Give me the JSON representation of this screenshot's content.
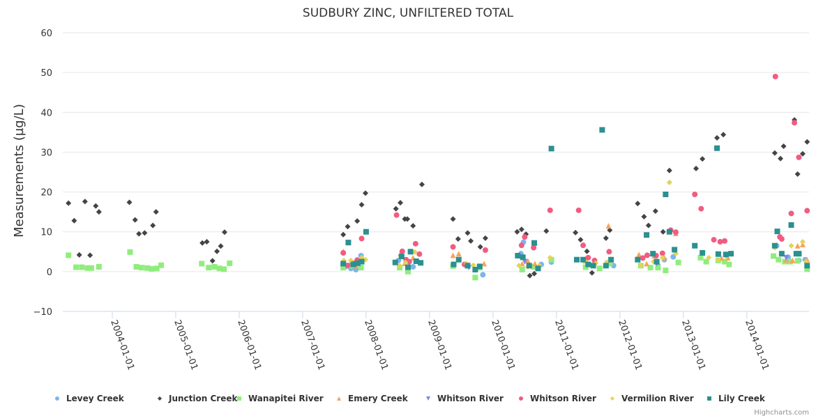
{
  "chart_data": {
    "type": "scatter",
    "title": "SUDBURY ZINC, UNFILTERED TOTAL",
    "xlabel": "",
    "ylabel": "Measurements (µg/L)",
    "ylim": [
      -10,
      60
    ],
    "xlim": [
      2003.22,
      2014.98
    ],
    "yticks": [
      "−10",
      "0",
      "10",
      "20",
      "30",
      "40",
      "50",
      "60"
    ],
    "ytick_values": [
      -10,
      0,
      10,
      20,
      30,
      40,
      50,
      60
    ],
    "xticks": [
      "2004-01-01",
      "2005-01-01",
      "2006-01-01",
      "2007-01-01",
      "2008-01-01",
      "2009-01-01",
      "2010-01-01",
      "2011-01-01",
      "2012-01-01",
      "2013-01-01",
      "2014-01-01"
    ],
    "xtick_values": [
      2004,
      2005,
      2006,
      2007,
      2008,
      2009,
      2010,
      2011,
      2012,
      2013,
      2014
    ],
    "grid": true,
    "legend": "bottom-center",
    "credits": "Highcharts.com",
    "series": [
      {
        "name": "Levey Creek",
        "marker": "circle",
        "color": "#7cb5ec",
        "points": [
          [
            2007.67,
            1.2
          ],
          [
            2007.76,
            0.8
          ],
          [
            2007.84,
            0.5
          ],
          [
            2007.92,
            4.0
          ],
          [
            2008.51,
            2.8
          ],
          [
            2008.74,
            1.2
          ],
          [
            2009.84,
            -0.8
          ],
          [
            2010.44,
            4.5
          ],
          [
            2010.48,
            7.4
          ],
          [
            2010.76,
            1.8
          ],
          [
            2010.92,
            2.4
          ],
          [
            2011.45,
            3.0
          ],
          [
            2011.9,
            1.5
          ],
          [
            2012.6,
            1.5
          ],
          [
            2012.7,
            3.0
          ],
          [
            2012.84,
            3.7
          ],
          [
            2014.47,
            6.5
          ],
          [
            2014.65,
            3.6
          ],
          [
            2014.82,
            2.8
          ],
          [
            2014.92,
            3.0
          ]
        ]
      },
      {
        "name": "Junction Creek",
        "marker": "diamond",
        "color": "#434348",
        "points": [
          [
            2003.31,
            17.2
          ],
          [
            2003.4,
            12.8
          ],
          [
            2003.48,
            4.2
          ],
          [
            2003.57,
            17.6
          ],
          [
            2003.65,
            4.1
          ],
          [
            2003.74,
            16.5
          ],
          [
            2003.79,
            15.0
          ],
          [
            2004.27,
            17.4
          ],
          [
            2004.36,
            13.0
          ],
          [
            2004.42,
            9.5
          ],
          [
            2004.51,
            9.7
          ],
          [
            2004.64,
            11.6
          ],
          [
            2004.69,
            15.0
          ],
          [
            2005.42,
            7.2
          ],
          [
            2005.49,
            7.5
          ],
          [
            2005.58,
            2.7
          ],
          [
            2005.65,
            5.1
          ],
          [
            2005.71,
            6.4
          ],
          [
            2005.77,
            9.9
          ],
          [
            2007.64,
            9.3
          ],
          [
            2007.71,
            11.3
          ],
          [
            2007.86,
            12.7
          ],
          [
            2007.93,
            16.8
          ],
          [
            2007.99,
            19.7
          ],
          [
            2008.47,
            15.8
          ],
          [
            2008.54,
            17.3
          ],
          [
            2008.61,
            13.2
          ],
          [
            2008.65,
            13.2
          ],
          [
            2008.74,
            11.5
          ],
          [
            2008.88,
            21.9
          ],
          [
            2009.37,
            13.2
          ],
          [
            2009.45,
            8.2
          ],
          [
            2009.6,
            9.7
          ],
          [
            2009.65,
            7.7
          ],
          [
            2009.8,
            6.2
          ],
          [
            2009.88,
            8.4
          ],
          [
            2010.38,
            10.0
          ],
          [
            2010.45,
            10.6
          ],
          [
            2010.52,
            9.4
          ],
          [
            2010.58,
            -1.0
          ],
          [
            2010.65,
            -0.5
          ],
          [
            2010.84,
            10.2
          ],
          [
            2011.3,
            9.8
          ],
          [
            2011.38,
            8.0
          ],
          [
            2011.48,
            5.1
          ],
          [
            2011.56,
            -0.3
          ],
          [
            2011.78,
            8.4
          ],
          [
            2011.84,
            10.4
          ],
          [
            2012.28,
            17.1
          ],
          [
            2012.38,
            13.8
          ],
          [
            2012.45,
            11.6
          ],
          [
            2012.56,
            15.2
          ],
          [
            2012.68,
            10.0
          ],
          [
            2012.78,
            25.4
          ],
          [
            2013.2,
            25.9
          ],
          [
            2013.3,
            28.3
          ],
          [
            2013.53,
            33.6
          ],
          [
            2013.63,
            34.4
          ],
          [
            2014.44,
            29.8
          ],
          [
            2014.58,
            31.5
          ],
          [
            2014.53,
            28.4
          ],
          [
            2014.75,
            38.1
          ],
          [
            2014.8,
            24.5
          ],
          [
            2014.88,
            29.6
          ],
          [
            2014.95,
            32.6
          ]
        ]
      },
      {
        "name": "Wanapitei River",
        "marker": "square",
        "color": "#90ed7d",
        "points": [
          [
            2003.31,
            4.1
          ],
          [
            2003.43,
            1.1
          ],
          [
            2003.52,
            1.1
          ],
          [
            2003.61,
            0.9
          ],
          [
            2003.67,
            0.9
          ],
          [
            2003.79,
            1.2
          ],
          [
            2004.28,
            4.9
          ],
          [
            2004.38,
            1.2
          ],
          [
            2004.46,
            1.0
          ],
          [
            2004.55,
            0.9
          ],
          [
            2004.62,
            0.7
          ],
          [
            2004.7,
            0.8
          ],
          [
            2004.77,
            1.6
          ],
          [
            2005.41,
            2.0
          ],
          [
            2005.52,
            1.0
          ],
          [
            2005.61,
            1.2
          ],
          [
            2005.69,
            0.8
          ],
          [
            2005.76,
            0.6
          ],
          [
            2005.85,
            2.1
          ],
          [
            2007.64,
            1.0
          ],
          [
            2007.76,
            1.5
          ],
          [
            2007.92,
            1.0
          ],
          [
            2008.53,
            1.0
          ],
          [
            2008.66,
            0.0
          ],
          [
            2009.37,
            1.4
          ],
          [
            2009.6,
            1.5
          ],
          [
            2009.72,
            -1.5
          ],
          [
            2009.79,
            1.0
          ],
          [
            2010.46,
            0.5
          ],
          [
            2010.64,
            1.2
          ],
          [
            2010.92,
            3.0
          ],
          [
            2011.46,
            1.1
          ],
          [
            2011.68,
            0.8
          ],
          [
            2011.84,
            2.0
          ],
          [
            2012.33,
            1.5
          ],
          [
            2012.48,
            1.0
          ],
          [
            2012.6,
            1.0
          ],
          [
            2012.72,
            0.3
          ],
          [
            2012.92,
            2.3
          ],
          [
            2013.27,
            3.5
          ],
          [
            2013.36,
            2.5
          ],
          [
            2013.55,
            2.8
          ],
          [
            2013.65,
            2.5
          ],
          [
            2013.72,
            1.8
          ],
          [
            2014.42,
            3.9
          ],
          [
            2014.5,
            3.0
          ],
          [
            2014.6,
            2.5
          ],
          [
            2014.68,
            2.5
          ],
          [
            2014.8,
            2.7
          ],
          [
            2014.95,
            0.6
          ]
        ]
      },
      {
        "name": "Emery Creek",
        "marker": "triangle",
        "color": "#f7a35c",
        "points": [
          [
            2007.64,
            5.1
          ],
          [
            2007.84,
            1.5
          ],
          [
            2008.54,
            4.5
          ],
          [
            2008.61,
            2.1
          ],
          [
            2008.74,
            3.5
          ],
          [
            2009.37,
            4.1
          ],
          [
            2009.46,
            4.5
          ],
          [
            2009.86,
            2.0
          ],
          [
            2010.46,
            2.0
          ],
          [
            2010.55,
            2.7
          ],
          [
            2010.66,
            2.0
          ],
          [
            2011.46,
            2.7
          ],
          [
            2011.82,
            11.5
          ],
          [
            2012.3,
            4.3
          ],
          [
            2012.42,
            2.0
          ],
          [
            2012.54,
            4.0
          ],
          [
            2012.7,
            3.5
          ],
          [
            2012.88,
            9.6
          ],
          [
            2013.6,
            3.4
          ],
          [
            2013.7,
            3.5
          ],
          [
            2014.62,
            3.0
          ],
          [
            2014.72,
            2.8
          ],
          [
            2014.8,
            6.5
          ],
          [
            2014.88,
            6.8
          ],
          [
            2014.95,
            3.0
          ]
        ]
      },
      {
        "name": "Whitson River",
        "marker": "triangle-down",
        "color": "#8085e9",
        "points": [
          [
            2007.72,
            1.5
          ],
          [
            2009.62,
            1.0
          ],
          [
            2010.5,
            2.5
          ],
          [
            2011.8,
            2.0
          ],
          [
            2012.58,
            2.0
          ],
          [
            2014.62,
            3.5
          ]
        ]
      },
      {
        "name": "Whitson River",
        "marker": "circle",
        "color": "#f15c80",
        "points": [
          [
            2007.64,
            4.7
          ],
          [
            2007.71,
            1.5
          ],
          [
            2007.8,
            2.1
          ],
          [
            2007.86,
            2.9
          ],
          [
            2007.93,
            8.3
          ],
          [
            2008.48,
            14.2
          ],
          [
            2008.57,
            5.1
          ],
          [
            2008.63,
            3.0
          ],
          [
            2008.68,
            2.5
          ],
          [
            2008.78,
            7.0
          ],
          [
            2008.84,
            4.4
          ],
          [
            2009.37,
            6.2
          ],
          [
            2009.55,
            1.8
          ],
          [
            2009.88,
            5.4
          ],
          [
            2010.45,
            6.6
          ],
          [
            2010.5,
            8.7
          ],
          [
            2010.64,
            6.0
          ],
          [
            2010.9,
            15.4
          ],
          [
            2011.35,
            15.4
          ],
          [
            2011.42,
            6.6
          ],
          [
            2011.5,
            3.5
          ],
          [
            2011.6,
            2.8
          ],
          [
            2011.83,
            5.0
          ],
          [
            2012.36,
            3.4
          ],
          [
            2012.43,
            4.1
          ],
          [
            2012.57,
            4.0
          ],
          [
            2012.67,
            4.6
          ],
          [
            2012.8,
            10.4
          ],
          [
            2012.88,
            9.9
          ],
          [
            2013.18,
            19.4
          ],
          [
            2013.28,
            15.8
          ],
          [
            2013.48,
            8.0
          ],
          [
            2013.58,
            7.5
          ],
          [
            2013.65,
            7.7
          ],
          [
            2014.45,
            49.0
          ],
          [
            2014.52,
            8.7
          ],
          [
            2014.55,
            8.2
          ],
          [
            2014.7,
            14.6
          ],
          [
            2014.75,
            37.4
          ],
          [
            2014.82,
            28.7
          ],
          [
            2014.95,
            15.3
          ]
        ]
      },
      {
        "name": "Vermilion River",
        "marker": "diamond",
        "color": "#e4d354",
        "points": [
          [
            2007.65,
            2.8
          ],
          [
            2007.76,
            2.8
          ],
          [
            2007.93,
            3.5
          ],
          [
            2007.99,
            3.0
          ],
          [
            2008.53,
            1.5
          ],
          [
            2008.62,
            2.3
          ],
          [
            2008.77,
            4.9
          ],
          [
            2009.58,
            2.0
          ],
          [
            2009.69,
            1.6
          ],
          [
            2010.41,
            1.5
          ],
          [
            2010.55,
            1.2
          ],
          [
            2010.73,
            1.5
          ],
          [
            2010.9,
            3.5
          ],
          [
            2011.46,
            2.5
          ],
          [
            2011.62,
            2.1
          ],
          [
            2011.8,
            2.4
          ],
          [
            2012.33,
            1.5
          ],
          [
            2012.53,
            2.5
          ],
          [
            2012.67,
            3.5
          ],
          [
            2012.78,
            22.4
          ],
          [
            2012.88,
            4.5
          ],
          [
            2013.4,
            3.5
          ],
          [
            2013.55,
            3.0
          ],
          [
            2013.68,
            3.8
          ],
          [
            2014.44,
            6.0
          ],
          [
            2014.55,
            4.5
          ],
          [
            2014.7,
            6.5
          ],
          [
            2014.88,
            7.5
          ],
          [
            2014.93,
            2.5
          ]
        ]
      },
      {
        "name": "Lily Creek",
        "marker": "square",
        "color": "#2b908f",
        "points": [
          [
            2007.64,
            2.0
          ],
          [
            2007.72,
            7.3
          ],
          [
            2007.8,
            1.8
          ],
          [
            2007.87,
            2.1
          ],
          [
            2007.93,
            2.5
          ],
          [
            2008.0,
            10.0
          ],
          [
            2008.46,
            2.3
          ],
          [
            2008.56,
            3.8
          ],
          [
            2008.66,
            1.1
          ],
          [
            2008.7,
            5.0
          ],
          [
            2008.79,
            2.6
          ],
          [
            2008.86,
            2.2
          ],
          [
            2009.38,
            1.8
          ],
          [
            2009.46,
            3.0
          ],
          [
            2009.6,
            1.5
          ],
          [
            2009.72,
            0.5
          ],
          [
            2009.79,
            1.3
          ],
          [
            2010.39,
            4.0
          ],
          [
            2010.47,
            3.6
          ],
          [
            2010.57,
            1.5
          ],
          [
            2010.65,
            7.2
          ],
          [
            2010.71,
            0.8
          ],
          [
            2010.92,
            30.9
          ],
          [
            2011.32,
            3.0
          ],
          [
            2011.42,
            3.0
          ],
          [
            2011.5,
            1.8
          ],
          [
            2011.58,
            1.5
          ],
          [
            2011.72,
            35.6
          ],
          [
            2011.78,
            1.5
          ],
          [
            2011.86,
            3.0
          ],
          [
            2012.28,
            3.0
          ],
          [
            2012.42,
            9.2
          ],
          [
            2012.52,
            4.5
          ],
          [
            2012.58,
            2.5
          ],
          [
            2012.72,
            19.4
          ],
          [
            2012.78,
            10.0
          ],
          [
            2012.86,
            5.5
          ],
          [
            2013.18,
            6.5
          ],
          [
            2013.3,
            4.7
          ],
          [
            2013.53,
            31.0
          ],
          [
            2013.55,
            4.4
          ],
          [
            2013.67,
            4.3
          ],
          [
            2013.75,
            4.5
          ],
          [
            2014.44,
            6.5
          ],
          [
            2014.48,
            10.1
          ],
          [
            2014.55,
            4.5
          ],
          [
            2014.7,
            11.7
          ],
          [
            2014.78,
            4.5
          ],
          [
            2014.82,
            4.5
          ],
          [
            2014.95,
            1.5
          ]
        ]
      }
    ]
  }
}
